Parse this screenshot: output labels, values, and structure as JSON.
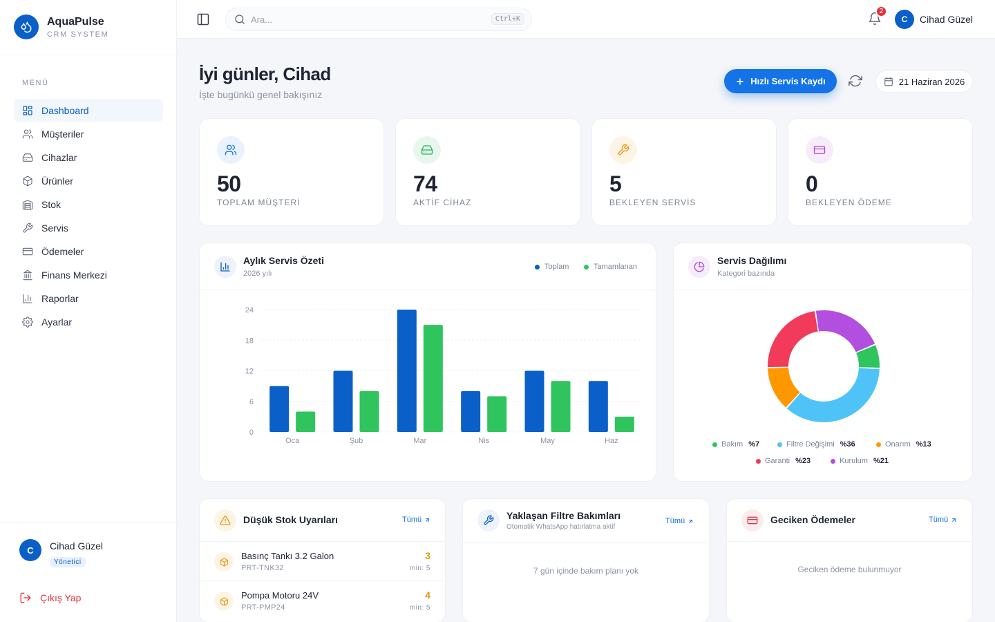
{
  "brand": {
    "name": "AquaPulse",
    "subtitle": "CRM SYSTEM"
  },
  "sidebar": {
    "menu_title": "MENÜ",
    "items": [
      {
        "label": "Dashboard",
        "icon": "dashboard-icon",
        "active": true
      },
      {
        "label": "Müşteriler",
        "icon": "users-icon"
      },
      {
        "label": "Cihazlar",
        "icon": "device-icon"
      },
      {
        "label": "Ürünler",
        "icon": "box-icon"
      },
      {
        "label": "Stok",
        "icon": "warehouse-icon"
      },
      {
        "label": "Servis",
        "icon": "wrench-icon"
      },
      {
        "label": "Ödemeler",
        "icon": "card-icon"
      },
      {
        "label": "Finans Merkezi",
        "icon": "bank-icon"
      },
      {
        "label": "Raporlar",
        "icon": "chart-icon"
      },
      {
        "label": "Ayarlar",
        "icon": "gear-icon"
      }
    ],
    "user": {
      "initial": "C",
      "name": "Cihad Güzel",
      "role": "Yönetici"
    },
    "logout_label": "Çıkış Yap"
  },
  "topbar": {
    "search_placeholder": "Ara...",
    "shortcut": "Ctrl+K",
    "notification_count": "2",
    "user_initial": "C",
    "user_name": "Cihad Güzel"
  },
  "header": {
    "greeting": "İyi günler, Cihad",
    "subtitle": "İşte bugünkü genel bakışınız",
    "quick_button": "Hızlı Servis Kaydı",
    "date": "21 Haziran 2026"
  },
  "stats": [
    {
      "value": "50",
      "label": "TOPLAM MÜŞTERİ",
      "icon": "users-icon",
      "color": "#1473e6",
      "bg": "#eaf2fd"
    },
    {
      "value": "74",
      "label": "AKTİF CİHAZ",
      "icon": "device-icon",
      "color": "#22b35a",
      "bg": "#e8f7ee"
    },
    {
      "value": "5",
      "label": "BEKLEYEN SERVİS",
      "icon": "wrench-icon",
      "color": "#e89510",
      "bg": "#fdf4e6"
    },
    {
      "value": "0",
      "label": "BEKLEYEN ÖDEME",
      "icon": "card-icon",
      "color": "#b144d6",
      "bg": "#f6ecfb"
    }
  ],
  "monthly": {
    "title": "Aylık Servis Özeti",
    "subtitle": "2026 yılı",
    "legend_total": "Toplam",
    "legend_done": "Tamamlanan"
  },
  "distribution": {
    "title": "Servis Dağılımı",
    "subtitle": "Kategori bazında"
  },
  "chart_data": [
    {
      "type": "bar",
      "categories": [
        "Oca",
        "Şub",
        "Mar",
        "Nis",
        "May",
        "Haz"
      ],
      "series": [
        {
          "name": "Toplam",
          "values": [
            9,
            12,
            24,
            8,
            12,
            10
          ],
          "color": "#0a5fc8"
        },
        {
          "name": "Tamamlanan",
          "values": [
            4,
            8,
            21,
            7,
            10,
            3
          ],
          "color": "#2fc45e"
        }
      ],
      "yticks": [
        0,
        6,
        12,
        18,
        24
      ],
      "ylim": [
        0,
        24
      ],
      "grid": true
    },
    {
      "type": "pie",
      "donut": true,
      "slices": [
        {
          "label": "Bakım",
          "value": 7,
          "pct": "%7",
          "color": "#2fc45e"
        },
        {
          "label": "Filtre Değişimi",
          "value": 36,
          "pct": "%36",
          "color": "#4fc3f7"
        },
        {
          "label": "Onarım",
          "value": 13,
          "pct": "%13",
          "color": "#ff9800"
        },
        {
          "label": "Garanti",
          "value": 23,
          "pct": "%23",
          "color": "#f23a5a"
        },
        {
          "label": "Kurulum",
          "value": 21,
          "pct": "%21",
          "color": "#b34fe0"
        }
      ]
    }
  ],
  "low_stock": {
    "title": "Düşük Stok Uyarıları",
    "link": "Tümü",
    "items": [
      {
        "name": "Basınç Tankı 3.2 Galon",
        "code": "PRT-TNK32",
        "qty": "3",
        "min": "min: 5"
      },
      {
        "name": "Pompa Motoru 24V",
        "code": "PRT-PMP24",
        "qty": "4",
        "min": "min: 5"
      }
    ]
  },
  "filter_maint": {
    "title": "Yaklaşan Filtre Bakımları",
    "subtitle": "Otomatik WhatsApp hatırlatma aktif",
    "link": "Tümü",
    "empty": "7 gün içinde bakım planı yok"
  },
  "overdue": {
    "title": "Geciken Ödemeler",
    "link": "Tümü",
    "empty": "Geciken ödeme bulunmuyor"
  }
}
